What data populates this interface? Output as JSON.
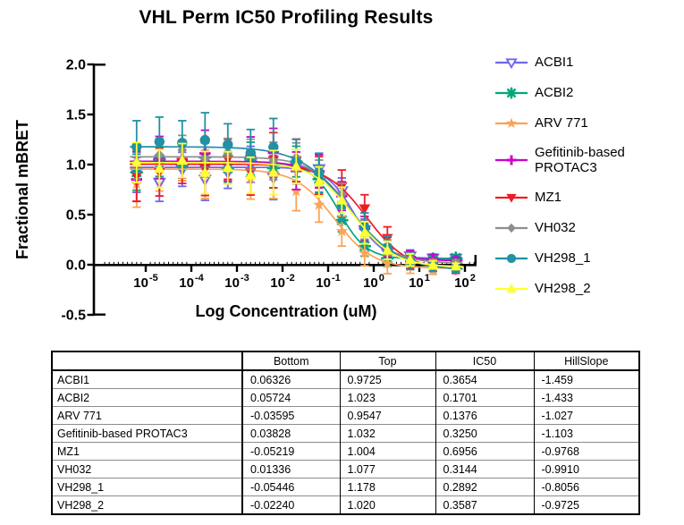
{
  "title": "VHL Perm IC50 Profiling Results",
  "axes": {
    "ylabel": "Fractional mBRET",
    "xlabel": "Log Concentration (uM)",
    "y_ticks": [
      2.0,
      1.5,
      1.0,
      0.5,
      0.0,
      -0.5
    ],
    "y_tick_labels": [
      "2.0",
      "1.5",
      "1.0",
      "0.5",
      "0.0",
      "-0.5"
    ],
    "x_tick_base": "10",
    "x_tick_exponents": [
      -5,
      -4,
      -3,
      -2,
      -1,
      0,
      1,
      2
    ],
    "y_range": [
      -0.5,
      2.0
    ]
  },
  "chart_data": {
    "type": "scatter",
    "subtype": "dose-response curves with error bars, log x-axis",
    "title": "VHL Perm IC50 Profiling Results",
    "xlabel": "Log Concentration (uM)",
    "ylabel": "Fractional mBRET",
    "xlim_log": [
      -6.1,
      2.25
    ],
    "ylim": [
      -0.5,
      2.0
    ],
    "legend_position": "right",
    "x_points_log": [
      -5.2,
      -4.7,
      -4.2,
      -3.7,
      -3.2,
      -2.7,
      -2.2,
      -1.7,
      -1.2,
      -0.7,
      -0.2,
      0.3,
      0.8,
      1.3,
      1.8
    ],
    "err_base": [
      0.2,
      0.19,
      0.17,
      0.21,
      0.16,
      0.18,
      0.22,
      0.17,
      0.15,
      0.13,
      0.11,
      0.09,
      0.06,
      0.04,
      0.03
    ],
    "series": [
      {
        "name": "ACBI1",
        "color": "#6e66f0",
        "marker": "triangle-down-open",
        "fit": {
          "bottom": 0.06326,
          "top": 0.9725,
          "ic50": 0.3654,
          "hill": -1.459
        },
        "jitter": [
          -0.05,
          -0.15,
          -0.02,
          -0.12,
          -0.05,
          0.03,
          -0.1,
          0.02,
          0.05,
          0.03,
          0.0,
          -0.02,
          0.01,
          0.0,
          0.0
        ],
        "err_scale": 1.0
      },
      {
        "name": "ACBI2",
        "color": "#00a77d",
        "marker": "asterisk8",
        "fit": {
          "bottom": 0.05724,
          "top": 1.023,
          "ic50": 0.1701,
          "hill": -1.433
        },
        "jitter": [
          -0.1,
          0.03,
          -0.03,
          0.05,
          -0.06,
          0.04,
          -0.05,
          0.05,
          0.02,
          -0.04,
          0.0,
          -0.02,
          0.01,
          0.0,
          0.01
        ],
        "err_scale": 0.9
      },
      {
        "name": "ARV 771",
        "color": "#fca356",
        "marker": "star5",
        "fit": {
          "bottom": -0.03595,
          "top": 0.9547,
          "ic50": 0.1376,
          "hill": -1.027
        },
        "jitter": [
          -0.15,
          0.0,
          0.08,
          -0.05,
          0.04,
          -0.08,
          0.0,
          -0.1,
          -0.05,
          -0.03,
          -0.02,
          -0.01,
          0.0,
          -0.02,
          0.0
        ],
        "err_scale": 1.15
      },
      {
        "name": "Gefitinib-based PROTAC3",
        "color": "#cc00cc",
        "marker": "plus",
        "fit": {
          "bottom": 0.03828,
          "top": 1.032,
          "ic50": 0.325,
          "hill": -1.103
        },
        "jitter": [
          -0.18,
          0.04,
          0.02,
          0.08,
          -0.02,
          0.05,
          0.1,
          -0.05,
          0.04,
          0.02,
          0.0,
          0.02,
          0.0,
          0.01,
          0.0
        ],
        "err_scale": 1.1
      },
      {
        "name": "MZ1",
        "color": "#ee1c25",
        "marker": "triangle-down",
        "fit": {
          "bottom": -0.05219,
          "top": 1.004,
          "ic50": 0.6956,
          "hill": -0.9768
        },
        "jitter": [
          -0.12,
          -0.08,
          0.02,
          -0.05,
          0.05,
          -0.08,
          0.05,
          0.07,
          -0.02,
          0.02,
          0.06,
          0.04,
          -0.02,
          0.0,
          -0.01
        ],
        "err_scale": 1.25
      },
      {
        "name": "VH032",
        "color": "#8e8e8e",
        "marker": "diamond",
        "fit": {
          "bottom": 0.01336,
          "top": 1.077,
          "ic50": 0.3144,
          "hill": -0.991
        },
        "jitter": [
          -0.05,
          0.02,
          0.07,
          -0.02,
          0.05,
          0.03,
          -0.02,
          0.06,
          0.02,
          0.04,
          -0.02,
          0.01,
          0.0,
          -0.01,
          0.0
        ],
        "err_scale": 0.85
      },
      {
        "name": "VH298_1",
        "color": "#2191a5",
        "marker": "circle",
        "fit": {
          "bottom": -0.05446,
          "top": 1.178,
          "ic50": 0.2892,
          "hill": -0.8056
        },
        "jitter": [
          0.0,
          0.05,
          0.04,
          0.07,
          0.03,
          -0.04,
          0.05,
          -0.02,
          0.02,
          -0.05,
          0.0,
          0.01,
          -0.01,
          0.0,
          0.0
        ],
        "err_scale": 1.3
      },
      {
        "name": "VH298_2",
        "color": "#ffff33",
        "marker": "triangle-up",
        "fit": {
          "bottom": -0.0224,
          "top": 1.02,
          "ic50": 0.3587,
          "hill": -0.9725
        },
        "jitter": [
          0.0,
          -0.06,
          0.02,
          -0.1,
          -0.05,
          -0.12,
          -0.08,
          0.02,
          -0.03,
          0.0,
          -0.04,
          0.0,
          0.01,
          0.0,
          0.0
        ],
        "err_scale": 1.0
      }
    ]
  },
  "table": {
    "columns": [
      "",
      "Bottom",
      "Top",
      "IC50",
      "HillSlope"
    ],
    "rows": [
      {
        "name": "ACBI1",
        "bottom": "0.06326",
        "top": "0.9725",
        "ic50": "0.3654",
        "hillslope": "-1.459"
      },
      {
        "name": "ACBI2",
        "bottom": "0.05724",
        "top": "1.023",
        "ic50": "0.1701",
        "hillslope": "-1.433"
      },
      {
        "name": "ARV 771",
        "bottom": "-0.03595",
        "top": "0.9547",
        "ic50": "0.1376",
        "hillslope": "-1.027"
      },
      {
        "name": "Gefitinib-based PROTAC3",
        "bottom": "0.03828",
        "top": "1.032",
        "ic50": "0.3250",
        "hillslope": "-1.103"
      },
      {
        "name": "MZ1",
        "bottom": "-0.05219",
        "top": "1.004",
        "ic50": "0.6956",
        "hillslope": "-0.9768"
      },
      {
        "name": "VH032",
        "bottom": "0.01336",
        "top": "1.077",
        "ic50": "0.3144",
        "hillslope": "-0.9910"
      },
      {
        "name": "VH298_1",
        "bottom": "-0.05446",
        "top": "1.178",
        "ic50": "0.2892",
        "hillslope": "-0.8056"
      },
      {
        "name": "VH298_2",
        "bottom": "-0.02240",
        "top": "1.020",
        "ic50": "0.3587",
        "hillslope": "-0.9725"
      }
    ]
  }
}
